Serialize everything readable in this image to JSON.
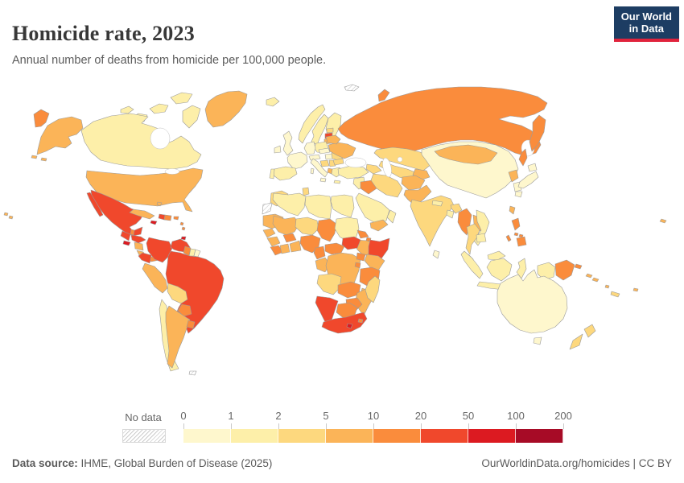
{
  "header": {
    "title": "Homicide rate, 2023",
    "subtitle": "Annual number of deaths from homicide per 100,000 people."
  },
  "logo": {
    "line1": "Our World",
    "line2": "in Data",
    "bg": "#1d3d63",
    "accent": "#e0233c"
  },
  "legend": {
    "no_data_label": "No data",
    "ticks": [
      "0",
      "1",
      "2",
      "5",
      "10",
      "20",
      "50",
      "100",
      "200"
    ],
    "bins": [
      {
        "range": "0-1",
        "color": "#fef7cd"
      },
      {
        "range": "1-2",
        "color": "#fdefa9"
      },
      {
        "range": "2-5",
        "color": "#fdd87e"
      },
      {
        "range": "5-10",
        "color": "#fbb458"
      },
      {
        "range": "10-20",
        "color": "#fa8c3c"
      },
      {
        "range": "20-50",
        "color": "#f0482c"
      },
      {
        "range": "50-100",
        "color": "#dc1a21"
      },
      {
        "range": "100-200",
        "color": "#a70b26"
      }
    ],
    "bin_colors": {
      "0-1": "#fef7cd",
      "1-2": "#fdefa9",
      "2-5": "#fdd87e",
      "5-10": "#fbb458",
      "10-20": "#fa8c3c",
      "20-50": "#f0482c",
      "50-100": "#dc1a21",
      "100-200": "#a70b26"
    }
  },
  "footer": {
    "source_label": "Data source:",
    "source_text": " IHME, Global Burden of Disease (2025)",
    "right_text": "OurWorldinData.org/homicides | CC BY"
  },
  "map": {
    "stroke_color": "#9b9b9b",
    "ocean_color": "#ffffff",
    "regions": {
      "canada": {
        "label": "Canada",
        "value": "1-2"
      },
      "greenland": {
        "label": "Greenland",
        "value": "5-10"
      },
      "usa": {
        "label": "United States",
        "value": "5-10"
      },
      "mexico": {
        "label": "Mexico",
        "value": "20-50"
      },
      "guatemala": {
        "label": "Guatemala",
        "value": "20-50"
      },
      "belize": {
        "label": "Belize",
        "value": "10-20"
      },
      "el-salvador": {
        "label": "El Salvador",
        "value": "50-100"
      },
      "honduras": {
        "label": "Honduras",
        "value": "20-50"
      },
      "nicaragua": {
        "label": "Nicaragua",
        "value": "5-10"
      },
      "costa-rica": {
        "label": "Costa Rica",
        "value": "5-10"
      },
      "panama": {
        "label": "Panama",
        "value": "10-20"
      },
      "cuba": {
        "label": "Cuba",
        "value": "5-10"
      },
      "jamaica": {
        "label": "Jamaica",
        "value": "50-100"
      },
      "haiti": {
        "label": "Haiti",
        "value": "20-50"
      },
      "dominican-republic": {
        "label": "Dominican Republic",
        "value": "10-20"
      },
      "puerto-rico": {
        "label": "Puerto Rico",
        "value": "10-20"
      },
      "bahamas": {
        "label": "Bahamas",
        "value": "5-10"
      },
      "lesser-antilles": {
        "label": "Lesser Antilles",
        "value": "10-20"
      },
      "trinidad-and-tobago": {
        "label": "Trinidad and Tobago",
        "value": "50-100"
      },
      "colombia": {
        "label": "Colombia",
        "value": "20-50"
      },
      "venezuela": {
        "label": "Venezuela",
        "value": "20-50"
      },
      "guyana": {
        "label": "Guyana",
        "value": "10-20"
      },
      "suriname": {
        "label": "Suriname",
        "value": "1-2"
      },
      "french-guiana": {
        "label": "French Guiana",
        "value": "0-1"
      },
      "ecuador": {
        "label": "Ecuador",
        "value": "20-50"
      },
      "peru": {
        "label": "Peru",
        "value": "5-10"
      },
      "brazil": {
        "label": "Brazil",
        "value": "20-50"
      },
      "bolivia": {
        "label": "Bolivia",
        "value": "2-5"
      },
      "paraguay": {
        "label": "Paraguay",
        "value": "10-20"
      },
      "chile": {
        "label": "Chile",
        "value": "1-2"
      },
      "argentina": {
        "label": "Argentina",
        "value": "5-10"
      },
      "uruguay": {
        "label": "Uruguay",
        "value": "10-20"
      },
      "falkland-islands": {
        "label": "Falkland Islands",
        "value": "no-data"
      },
      "iceland": {
        "label": "Iceland",
        "value": "1-2"
      },
      "ireland": {
        "label": "Ireland",
        "value": "0-1"
      },
      "united-kingdom": {
        "label": "United Kingdom",
        "value": "0-1"
      },
      "norway": {
        "label": "Norway",
        "value": "1-2"
      },
      "sweden": {
        "label": "Sweden",
        "value": "1-2"
      },
      "finland": {
        "label": "Finland",
        "value": "1-2"
      },
      "denmark": {
        "label": "Denmark",
        "value": "0-1"
      },
      "estonia": {
        "label": "Estonia",
        "value": "2-5"
      },
      "latvia": {
        "label": "Latvia",
        "value": "20-50"
      },
      "lithuania": {
        "label": "Lithuania",
        "value": "5-10"
      },
      "poland": {
        "label": "Poland",
        "value": "1-2"
      },
      "germany": {
        "label": "Germany",
        "value": "0-1"
      },
      "france": {
        "label": "France",
        "value": "0-1"
      },
      "spain": {
        "label": "Spain",
        "value": "1-2"
      },
      "portugal": {
        "label": "Portugal",
        "value": "1-2"
      },
      "italy": {
        "label": "Italy",
        "value": "0-1"
      },
      "switzerland-austria": {
        "label": "Switzerland / Austria",
        "value": "0-1"
      },
      "czechia-slovakia": {
        "label": "Czechia / Slovakia",
        "value": "0-1"
      },
      "hungary": {
        "label": "Hungary",
        "value": "0-1"
      },
      "croatia-bosnia": {
        "label": "Croatia / Bosnia",
        "value": "2-5"
      },
      "serbia": {
        "label": "Serbia",
        "value": "2-5"
      },
      "albania": {
        "label": "Albania",
        "value": "5-10"
      },
      "greece": {
        "label": "Greece",
        "value": "1-2"
      },
      "romania": {
        "label": "Romania",
        "value": "2-5"
      },
      "bulgaria": {
        "label": "Bulgaria",
        "value": "2-5"
      },
      "moldova": {
        "label": "Moldova",
        "value": "5-10"
      },
      "ukraine": {
        "label": "Ukraine",
        "value": "5-10"
      },
      "belarus": {
        "label": "Belarus",
        "value": "5-10"
      },
      "svalbard": {
        "label": "Svalbard",
        "value": "no-data"
      },
      "russia": {
        "label": "Russia",
        "value": "10-20"
      },
      "kazakhstan": {
        "label": "Kazakhstan",
        "value": "2-5"
      },
      "uzbekistan-turkmenistan": {
        "label": "Uzbekistan / Turkmenistan",
        "value": "2-5"
      },
      "kyrgyzstan-tajikistan": {
        "label": "Kyrgyzstan / Tajikistan",
        "value": "5-10"
      },
      "caucasus": {
        "label": "Caucasus",
        "value": "2-5"
      },
      "turkey": {
        "label": "Turkey",
        "value": "1-2"
      },
      "syria-levant": {
        "label": "Syria / Levant",
        "value": "1-2"
      },
      "iraq": {
        "label": "Iraq",
        "value": "10-20"
      },
      "iran": {
        "label": "Iran",
        "value": "2-5"
      },
      "saudi-arabia": {
        "label": "Saudi Arabia",
        "value": "1-2"
      },
      "yemen": {
        "label": "Yemen",
        "value": "5-10"
      },
      "oman": {
        "label": "Oman",
        "value": "1-2"
      },
      "afghanistan": {
        "label": "Afghanistan",
        "value": "5-10"
      },
      "pakistan": {
        "label": "Pakistan",
        "value": "5-10"
      },
      "india": {
        "label": "India",
        "value": "2-5"
      },
      "nepal": {
        "label": "Nepal",
        "value": "1-2"
      },
      "bangladesh": {
        "label": "Bangladesh",
        "value": "1-2"
      },
      "sri-lanka": {
        "label": "Sri Lanka",
        "value": "0-1"
      },
      "china": {
        "label": "China",
        "value": "0-1"
      },
      "mongolia": {
        "label": "Mongolia",
        "value": "5-10"
      },
      "north-korea": {
        "label": "North Korea",
        "value": "5-10"
      },
      "south-korea": {
        "label": "South Korea",
        "value": "0-1"
      },
      "taiwan": {
        "label": "Taiwan",
        "value": "5-10"
      },
      "japan": {
        "label": "Japan",
        "value": "0-1"
      },
      "myanmar": {
        "label": "Myanmar",
        "value": "10-20"
      },
      "thailand": {
        "label": "Thailand",
        "value": "2-5"
      },
      "laos": {
        "label": "Laos",
        "value": "5-10"
      },
      "vietnam": {
        "label": "Vietnam",
        "value": "1-2"
      },
      "cambodia": {
        "label": "Cambodia",
        "value": "1-2"
      },
      "malaysia": {
        "label": "Malaysia",
        "value": "1-2"
      },
      "indonesia": {
        "label": "Indonesia",
        "value": "1-2"
      },
      "philippines": {
        "label": "Philippines",
        "value": "10-20"
      },
      "papua-new-guinea": {
        "label": "Papua New Guinea",
        "value": "10-20"
      },
      "australia": {
        "label": "Australia",
        "value": "0-1"
      },
      "new-zealand": {
        "label": "New Zealand",
        "value": "2-5"
      },
      "solomon-islands": {
        "label": "Solomon Islands",
        "value": "5-10"
      },
      "vanuatu": {
        "label": "Vanuatu",
        "value": "5-10"
      },
      "new-caledonia": {
        "label": "New Caledonia",
        "value": "2-5"
      },
      "fiji": {
        "label": "Fiji",
        "value": "5-10"
      },
      "pacific-islands": {
        "label": "Pacific Islands",
        "value": "5-10"
      },
      "morocco": {
        "label": "Morocco",
        "value": "2-5"
      },
      "western-sahara": {
        "label": "Western Sahara",
        "value": "no-data"
      },
      "algeria": {
        "label": "Algeria",
        "value": "1-2"
      },
      "tunisia": {
        "label": "Tunisia",
        "value": "2-5"
      },
      "libya": {
        "label": "Libya",
        "value": "1-2"
      },
      "egypt": {
        "label": "Egypt",
        "value": "1-2"
      },
      "mauritania": {
        "label": "Mauritania",
        "value": "5-10"
      },
      "mali": {
        "label": "Mali",
        "value": "5-10"
      },
      "niger": {
        "label": "Niger",
        "value": "2-5"
      },
      "chad": {
        "label": "Chad",
        "value": "10-20"
      },
      "sudan": {
        "label": "Sudan",
        "value": "1-2"
      },
      "south-sudan": {
        "label": "South Sudan",
        "value": "20-50"
      },
      "eritrea": {
        "label": "Eritrea",
        "value": "10-20"
      },
      "djibouti": {
        "label": "Djibouti",
        "value": "10-20"
      },
      "ethiopia": {
        "label": "Ethiopia",
        "value": "5-10"
      },
      "somalia": {
        "label": "Somalia",
        "value": "20-50"
      },
      "senegal": {
        "label": "Senegal",
        "value": "5-10"
      },
      "guinea": {
        "label": "Guinea",
        "value": "5-10"
      },
      "sierra-leone-liberia": {
        "label": "Sierra Leone / Liberia",
        "value": "10-20"
      },
      "ivory-coast": {
        "label": "Côte d'Ivoire",
        "value": "5-10"
      },
      "burkina-faso": {
        "label": "Burkina Faso",
        "value": "10-20"
      },
      "ghana-togo-benin": {
        "label": "Ghana / Togo / Benin",
        "value": "5-10"
      },
      "nigeria": {
        "label": "Nigeria",
        "value": "10-20"
      },
      "cameroon": {
        "label": "Cameroon",
        "value": "10-20"
      },
      "central-african-republic": {
        "label": "Central African Republic",
        "value": "10-20"
      },
      "gabon-congo": {
        "label": "Gabon / Congo",
        "value": "5-10"
      },
      "drc": {
        "label": "Democratic Republic of Congo",
        "value": "5-10"
      },
      "uganda": {
        "label": "Uganda",
        "value": "10-20"
      },
      "kenya": {
        "label": "Kenya",
        "value": "5-10"
      },
      "rwanda-burundi": {
        "label": "Rwanda / Burundi",
        "value": "10-20"
      },
      "tanzania": {
        "label": "Tanzania",
        "value": "10-20"
      },
      "angola": {
        "label": "Angola",
        "value": "2-5"
      },
      "zambia": {
        "label": "Zambia",
        "value": "10-20"
      },
      "malawi": {
        "label": "Malawi",
        "value": "5-10"
      },
      "mozambique": {
        "label": "Mozambique",
        "value": "5-10"
      },
      "zimbabwe": {
        "label": "Zimbabwe",
        "value": "10-20"
      },
      "botswana": {
        "label": "Botswana",
        "value": "10-20"
      },
      "namibia": {
        "label": "Namibia",
        "value": "20-50"
      },
      "south-africa": {
        "label": "South Africa",
        "value": "20-50"
      },
      "lesotho": {
        "label": "Lesotho",
        "value": "50-100"
      },
      "eswatini": {
        "label": "Eswatini",
        "value": "10-20"
      },
      "madagascar": {
        "label": "Madagascar",
        "value": "2-5"
      }
    }
  }
}
